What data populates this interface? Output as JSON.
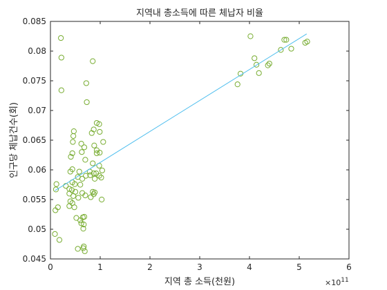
{
  "chart_data": {
    "type": "scatter",
    "title": "지역내 총소득에 따른 체납자 비율",
    "xlabel": "지역 총 소득(천원)",
    "ylabel": "인구당 체납건수(회)",
    "x_exponent_label": "×10",
    "x_exponent_power": "11",
    "xlim": [
      0,
      6
    ],
    "ylim": [
      0.045,
      0.085
    ],
    "x_ticks": [
      "0",
      "1",
      "2",
      "3",
      "4",
      "5",
      "6"
    ],
    "y_ticks": [
      "0.045",
      "0.05",
      "0.055",
      "0.06",
      "0.065",
      "0.07",
      "0.075",
      "0.08",
      "0.085"
    ],
    "grid": false,
    "colors": {
      "points": "#77AC30",
      "fit": "#4DBEEE",
      "axis": "#262626"
    },
    "series": [
      {
        "type": "scatter",
        "points": [
          [
            0.21,
            0.0822
          ],
          [
            0.22,
            0.0789
          ],
          [
            0.22,
            0.0734
          ],
          [
            0.85,
            0.0783
          ],
          [
            0.72,
            0.0746
          ],
          [
            0.73,
            0.0714
          ],
          [
            0.93,
            0.0679
          ],
          [
            0.98,
            0.0677
          ],
          [
            0.87,
            0.0668
          ],
          [
            0.83,
            0.0662
          ],
          [
            0.99,
            0.0664
          ],
          [
            0.47,
            0.0665
          ],
          [
            0.46,
            0.0657
          ],
          [
            0.45,
            0.0647
          ],
          [
            0.62,
            0.0644
          ],
          [
            0.68,
            0.0638
          ],
          [
            1.06,
            0.0647
          ],
          [
            0.88,
            0.0641
          ],
          [
            0.93,
            0.0633
          ],
          [
            0.63,
            0.063
          ],
          [
            0.44,
            0.0628
          ],
          [
            0.41,
            0.0622
          ],
          [
            0.93,
            0.0628
          ],
          [
            0.99,
            0.0629
          ],
          [
            0.7,
            0.0617
          ],
          [
            0.98,
            0.0607
          ],
          [
            0.85,
            0.0611
          ],
          [
            0.44,
            0.0601
          ],
          [
            0.4,
            0.0597
          ],
          [
            0.58,
            0.0597
          ],
          [
            1.04,
            0.0599
          ],
          [
            0.79,
            0.0597
          ],
          [
            0.8,
            0.0591
          ],
          [
            0.87,
            0.0594
          ],
          [
            0.92,
            0.0594
          ],
          [
            0.98,
            0.059
          ],
          [
            0.71,
            0.059
          ],
          [
            0.55,
            0.0588
          ],
          [
            1.02,
            0.0587
          ],
          [
            0.64,
            0.0585
          ],
          [
            0.89,
            0.0585
          ],
          [
            0.12,
            0.0576
          ],
          [
            0.44,
            0.0579
          ],
          [
            0.49,
            0.0576
          ],
          [
            0.6,
            0.0575
          ],
          [
            0.31,
            0.0573
          ],
          [
            0.11,
            0.0567
          ],
          [
            0.38,
            0.0568
          ],
          [
            0.43,
            0.0566
          ],
          [
            0.5,
            0.0563
          ],
          [
            0.85,
            0.0563
          ],
          [
            0.89,
            0.0562
          ],
          [
            0.87,
            0.0559
          ],
          [
            0.38,
            0.056
          ],
          [
            0.46,
            0.0556
          ],
          [
            0.56,
            0.0553
          ],
          [
            0.64,
            0.0561
          ],
          [
            0.7,
            0.0557
          ],
          [
            0.81,
            0.0554
          ],
          [
            1.03,
            0.055
          ],
          [
            0.4,
            0.0547
          ],
          [
            0.44,
            0.0544
          ],
          [
            0.15,
            0.0537
          ],
          [
            0.38,
            0.0539
          ],
          [
            0.48,
            0.0537
          ],
          [
            0.1,
            0.0532
          ],
          [
            0.52,
            0.0519
          ],
          [
            0.6,
            0.0515
          ],
          [
            0.65,
            0.052
          ],
          [
            0.68,
            0.0521
          ],
          [
            0.62,
            0.051
          ],
          [
            0.67,
            0.0508
          ],
          [
            0.66,
            0.0501
          ],
          [
            0.09,
            0.0492
          ],
          [
            0.18,
            0.0482
          ],
          [
            0.55,
            0.0467
          ],
          [
            0.66,
            0.0468
          ],
          [
            0.67,
            0.0471
          ],
          [
            0.69,
            0.0463
          ],
          [
            4.02,
            0.0825
          ],
          [
            4.7,
            0.0819
          ],
          [
            4.74,
            0.0819
          ],
          [
            5.12,
            0.0814
          ],
          [
            5.16,
            0.0816
          ],
          [
            4.1,
            0.0788
          ],
          [
            4.63,
            0.0802
          ],
          [
            4.84,
            0.0804
          ],
          [
            4.14,
            0.0777
          ],
          [
            4.37,
            0.0776
          ],
          [
            4.4,
            0.0779
          ],
          [
            3.82,
            0.0762
          ],
          [
            4.19,
            0.0763
          ],
          [
            3.76,
            0.0744
          ]
        ]
      },
      {
        "type": "line",
        "points": [
          [
            0.09,
            0.0565
          ],
          [
            5.15,
            0.0829
          ]
        ]
      }
    ]
  }
}
